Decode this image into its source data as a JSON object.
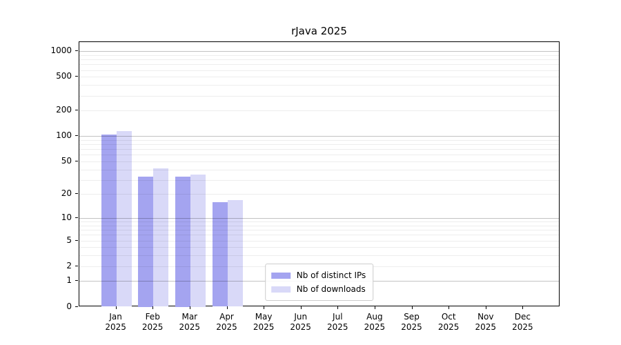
{
  "chart_data": {
    "type": "bar",
    "title": "rJava 2025",
    "categories": [
      "Jan",
      "Feb",
      "Mar",
      "Apr",
      "May",
      "Jun",
      "Jul",
      "Aug",
      "Sep",
      "Oct",
      "Nov",
      "Dec"
    ],
    "category_year": "2025",
    "series": [
      {
        "name": "Nb of distinct IPs",
        "color": "#a4a4f0",
        "values": [
          104,
          33,
          33,
          16,
          0,
          0,
          0,
          0,
          0,
          0,
          0,
          0
        ]
      },
      {
        "name": "Nb of downloads",
        "color": "#d9d9f8",
        "values": [
          114,
          41,
          35,
          17,
          0,
          0,
          0,
          0,
          0,
          0,
          0,
          0
        ]
      }
    ],
    "y_ticks": [
      0,
      1,
      2,
      5,
      10,
      20,
      50,
      100,
      200,
      500,
      1000
    ],
    "y_scale": "log10(1+y)",
    "ylim": [
      0,
      1275
    ],
    "grid": "horizontal major+minor",
    "legend_position": "lower center",
    "colors": {
      "major_grid": "#c3c3c3",
      "minor_grid": "#ececec",
      "axis": "#000000",
      "background": "#ffffff"
    }
  }
}
